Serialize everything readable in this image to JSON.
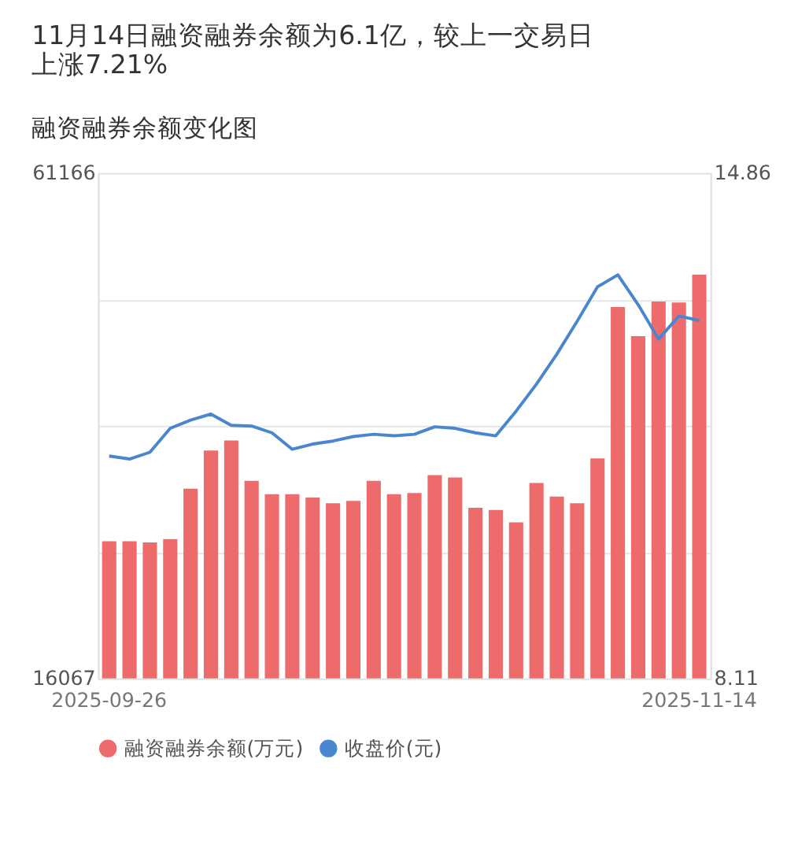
{
  "chart_data": {
    "type": "bar",
    "title": "融资融券余额变化图",
    "annotations": [
      "11月14日融资融券余额为6.1亿，较上一交易日上涨7.21%"
    ],
    "categories": [
      "2025-09-26",
      null,
      null,
      null,
      null,
      null,
      null,
      null,
      null,
      null,
      null,
      null,
      null,
      null,
      null,
      null,
      null,
      null,
      null,
      null,
      null,
      null,
      null,
      null,
      null,
      null,
      null,
      null,
      null,
      "2025-11-14"
    ],
    "series": [
      {
        "name": "融资融券余额(万元)",
        "color": "#ee6b6b",
        "values": [
          28300,
          28300,
          28200,
          28500,
          33000,
          36400,
          37300,
          33700,
          32500,
          32500,
          32200,
          31700,
          31900,
          33700,
          32500,
          32600,
          34200,
          34000,
          31300,
          31100,
          30000,
          33500,
          32300,
          31700,
          35700,
          49200,
          46600,
          49700,
          49600,
          52100
        ]
      },
      {
        "name": "收盘价(元)",
        "type": "line",
        "axis": "y2",
        "color": "#4a86d0",
        "values": [
          11.08,
          11.04,
          11.13,
          11.45,
          11.56,
          11.64,
          11.49,
          11.48,
          11.39,
          11.17,
          11.24,
          11.28,
          11.34,
          11.37,
          11.35,
          11.37,
          11.47,
          11.45,
          11.39,
          11.35,
          11.68,
          12.04,
          12.44,
          12.88,
          13.34,
          13.5,
          13.1,
          12.64,
          12.95,
          12.89
        ]
      }
    ],
    "ylim": [
      16067,
      61166
    ],
    "yticks": [
      16067,
      {
        "value": 27341.75,
        "label": null
      },
      {
        "value": 38616.5,
        "label": null
      },
      {
        "value": 49891.25,
        "label": null
      },
      61166
    ],
    "y2lim": [
      8.11,
      14.86
    ],
    "y2ticks": [
      8.11,
      14.86
    ],
    "grid": "y",
    "legend": "bottom",
    "marker": "none",
    "line_style": "solid"
  }
}
